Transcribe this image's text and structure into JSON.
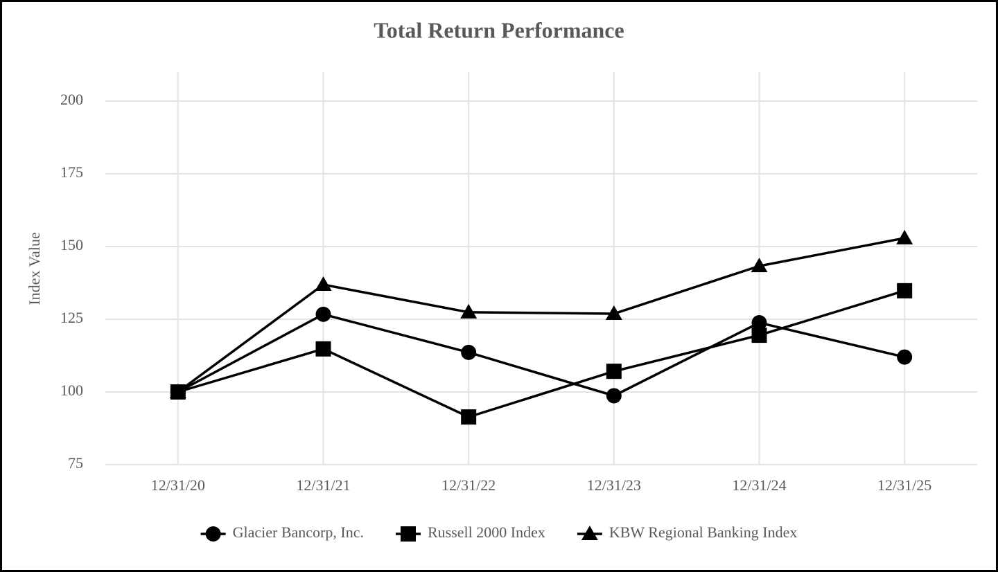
{
  "chart_data": {
    "type": "line",
    "title": "Total Return Performance",
    "y_label": "Index Value",
    "categories": [
      "12/31/20",
      "12/31/21",
      "12/31/22",
      "12/31/23",
      "12/31/24",
      "12/31/25"
    ],
    "series": [
      {
        "name": "Glacier Bancorp, Inc.",
        "color": "#000000",
        "marker": "circle",
        "values": [
          100,
          126.7,
          113.6,
          98.7,
          123.8,
          112.0
        ]
      },
      {
        "name": "Russell 2000 Index",
        "color": "#000000",
        "marker": "square",
        "values": [
          100,
          114.8,
          91.4,
          107.1,
          119.5,
          134.8
        ]
      },
      {
        "name": "KBW Regional Banking Index",
        "color": "#000000",
        "marker": "triangle",
        "values": [
          100,
          136.9,
          127.4,
          126.9,
          143.3,
          152.9
        ]
      }
    ],
    "ylim": [
      75,
      210
    ],
    "yticks": [
      75,
      100,
      125,
      150,
      175,
      200
    ],
    "grid": true,
    "legend": "bottom"
  }
}
